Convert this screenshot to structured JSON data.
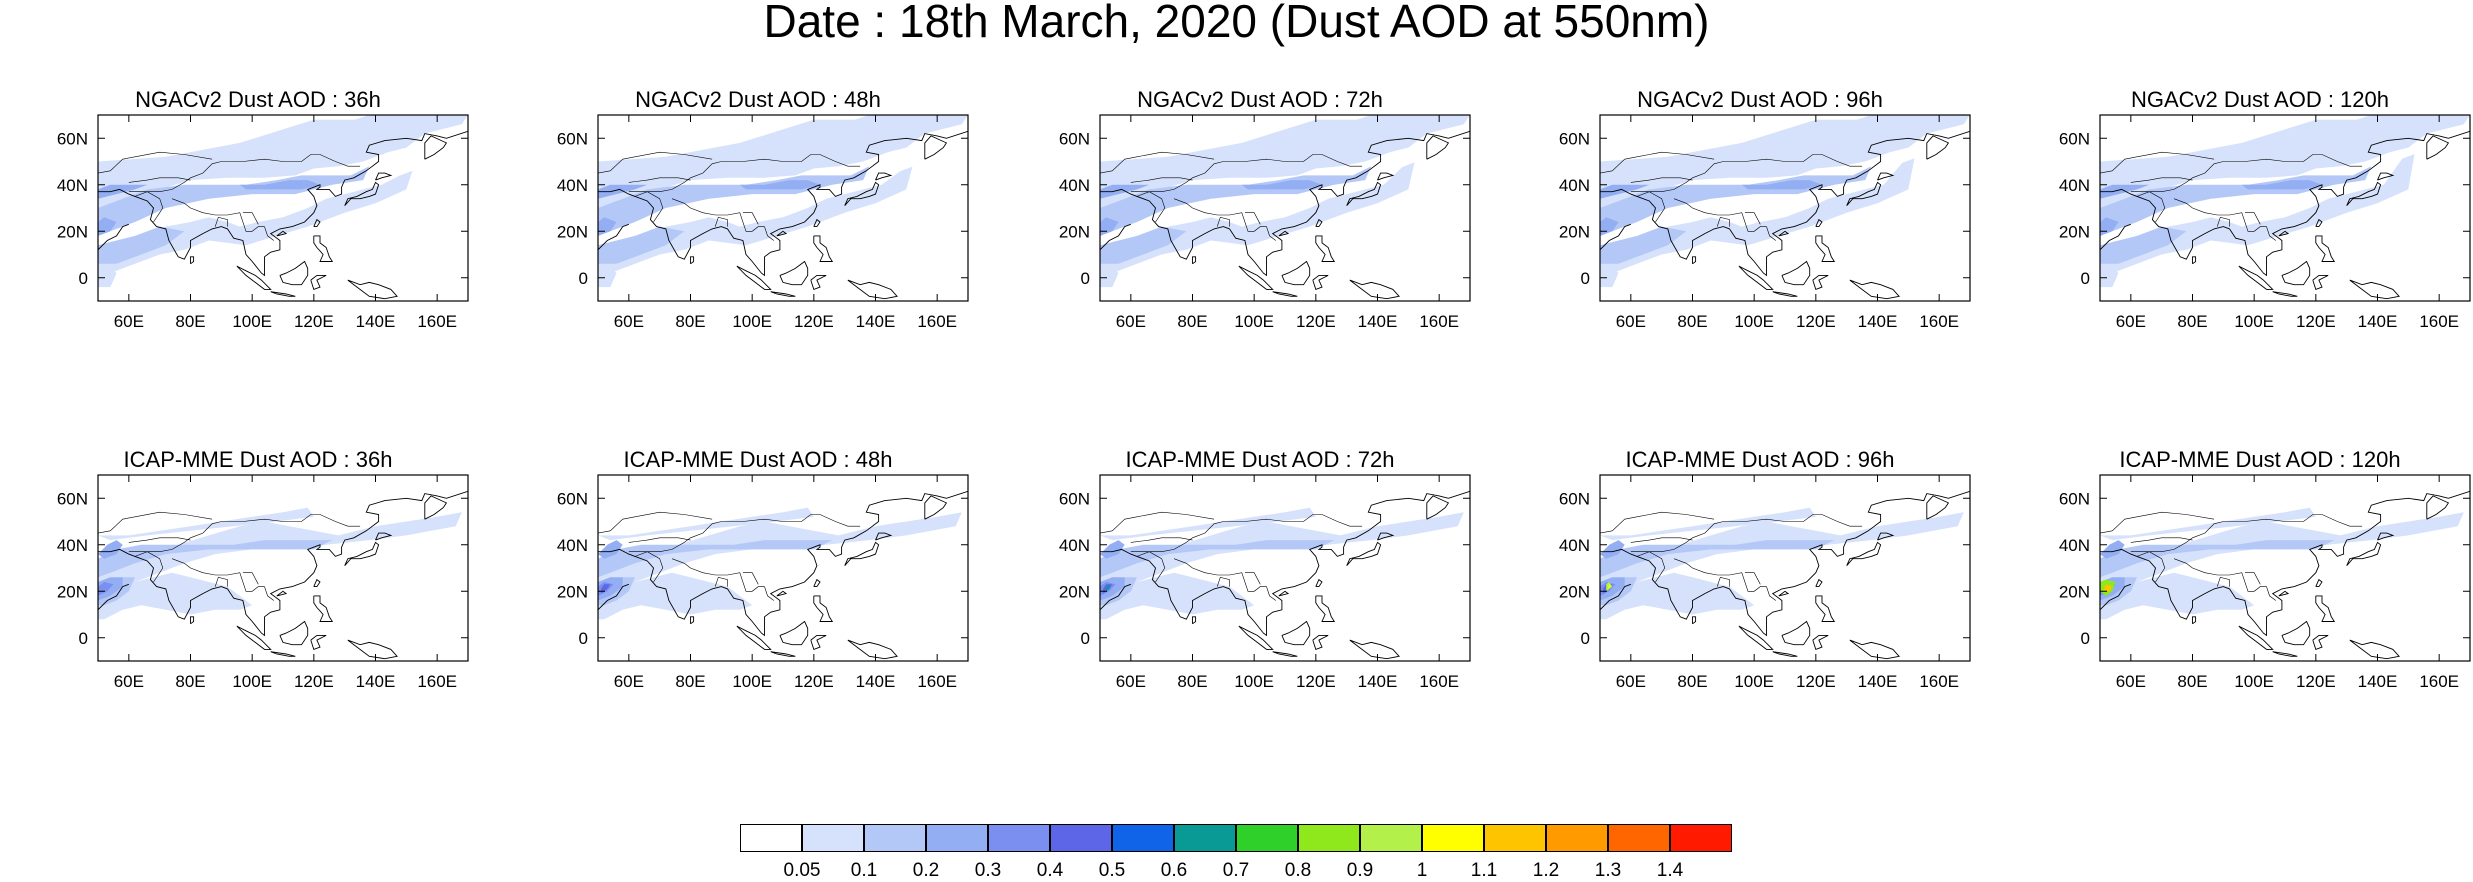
{
  "title": "Date : 18th March, 2020 (Dust AOD at 550nm)",
  "rows": [
    {
      "model": "NGACv2",
      "panels": [
        "NGACv2 Dust AOD : 36h",
        "NGACv2 Dust AOD : 48h",
        "NGACv2 Dust AOD : 72h",
        "NGACv2 Dust AOD : 96h",
        "NGACv2 Dust AOD : 120h"
      ]
    },
    {
      "model": "ICAP-MME",
      "panels": [
        "ICAP-MME Dust AOD : 36h",
        "ICAP-MME Dust AOD : 48h",
        "ICAP-MME Dust AOD : 72h",
        "ICAP-MME Dust AOD : 96h",
        "ICAP-MME Dust AOD : 120h"
      ]
    }
  ],
  "axes": {
    "lon_ticks": [
      "60E",
      "80E",
      "100E",
      "120E",
      "140E",
      "160E"
    ],
    "lat_ticks": [
      "60N",
      "40N",
      "20N",
      "0"
    ],
    "lon_range": [
      50,
      170
    ],
    "lat_range": [
      -10,
      70
    ]
  },
  "colorbar": {
    "colors": [
      "#ffffff",
      "#d6e2fb",
      "#b4c8f7",
      "#93aef3",
      "#7a8ff0",
      "#5c66e6",
      "#0f64e8",
      "#0a9a96",
      "#2fd02a",
      "#8ee81c",
      "#b4f04a",
      "#ffff00",
      "#ffc400",
      "#ff9a00",
      "#ff6600",
      "#ff1a00"
    ],
    "labels": [
      "0.05",
      "0.1",
      "0.2",
      "0.3",
      "0.4",
      "0.5",
      "0.6",
      "0.7",
      "0.8",
      "0.9",
      "1",
      "1.1",
      "1.2",
      "1.3",
      "1.4"
    ]
  }
}
